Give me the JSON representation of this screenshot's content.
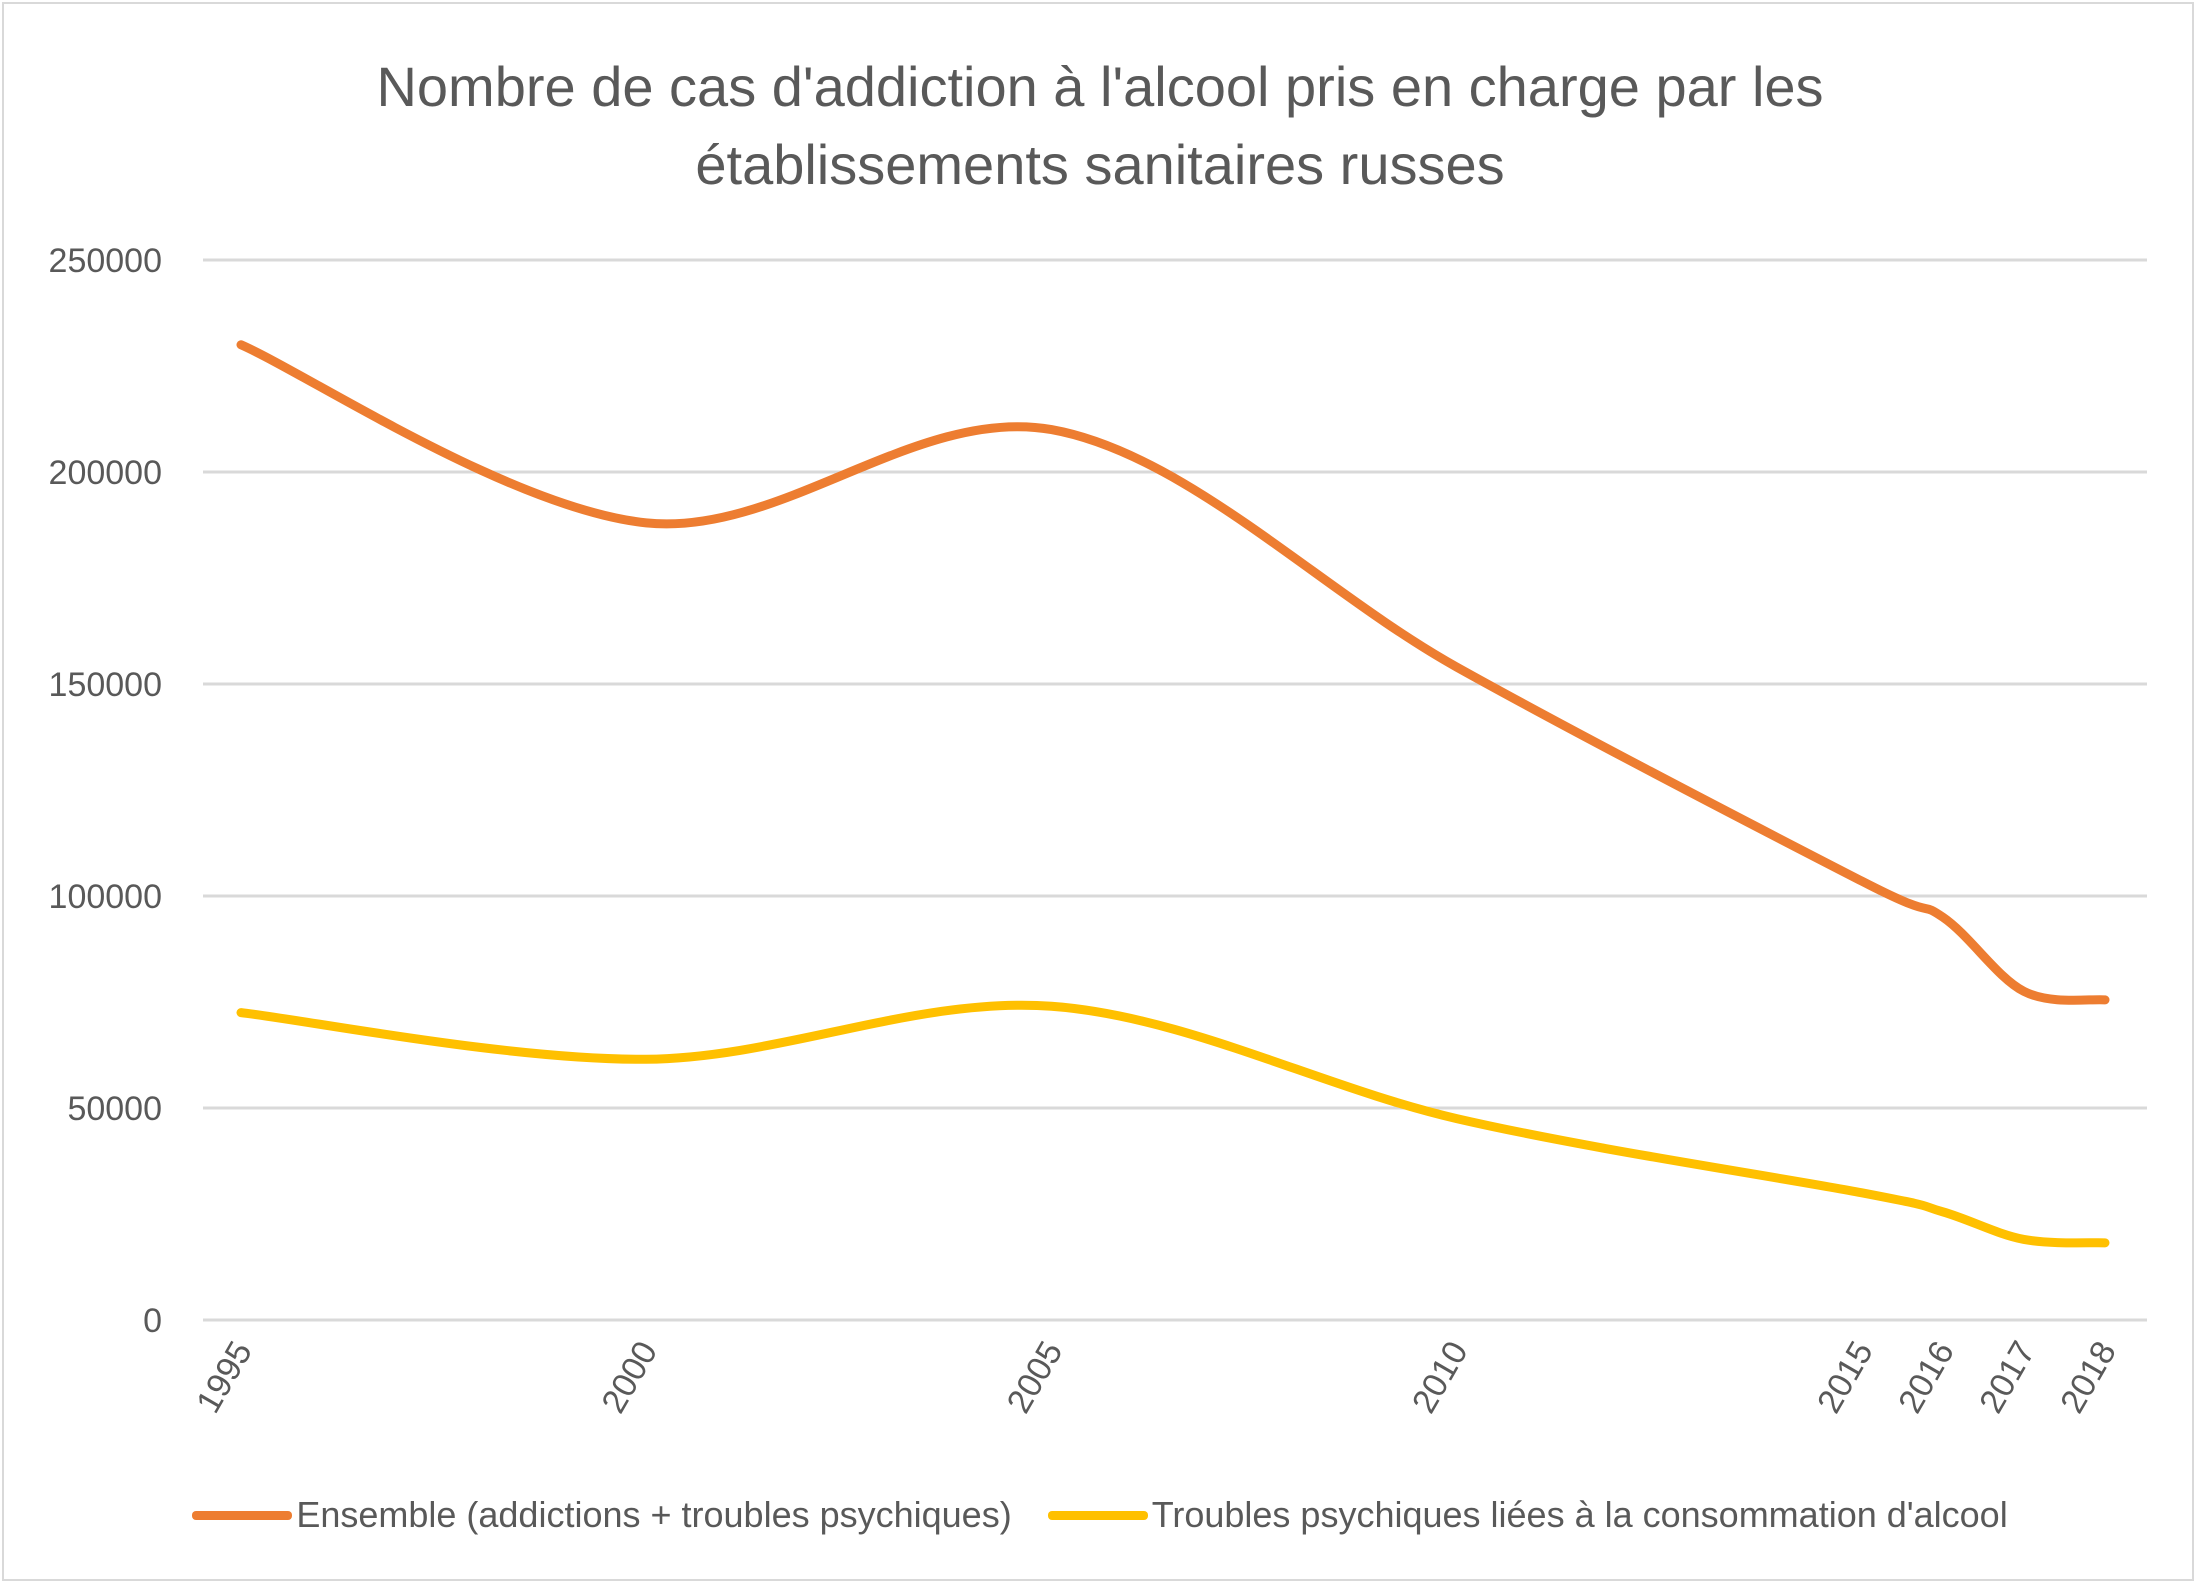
{
  "chart_data": {
    "type": "line",
    "title": "Nombre de cas d'addiction à l'alcool pris en charge par les établissements sanitaires russes",
    "title_lines": [
      "Nombre de cas d'addiction à l'alcool pris en charge par les",
      "établissements sanitaires russes"
    ],
    "x": [
      1995,
      2000,
      2005,
      2010,
      2015,
      2016,
      2017,
      2018
    ],
    "x_tick_labels": [
      "1995",
      "2000",
      "2005",
      "2010",
      "2015",
      "2016",
      "2017",
      "2018"
    ],
    "xlim": [
      1995,
      2018
    ],
    "ylim": [
      0,
      250000
    ],
    "y_ticks": [
      0,
      50000,
      100000,
      150000,
      200000,
      250000
    ],
    "y_tick_labels": [
      "0",
      "50000",
      "100000",
      "150000",
      "200000",
      "250000"
    ],
    "xlabel": "",
    "ylabel": "",
    "grid": true,
    "smoothed": true,
    "legend_position": "bottom",
    "series": [
      {
        "name": "Ensemble (addictions + troubles psychiques)",
        "color": "#ED7D31",
        "values": [
          230000,
          188000,
          210000,
          154000,
          103500,
          95000,
          77500,
          75500
        ]
      },
      {
        "name": "Troubles psychiques liées à la consommation d'alcool",
        "color": "#FFC000",
        "values": [
          72500,
          61500,
          74000,
          47500,
          30000,
          25500,
          19000,
          18200
        ]
      }
    ]
  }
}
